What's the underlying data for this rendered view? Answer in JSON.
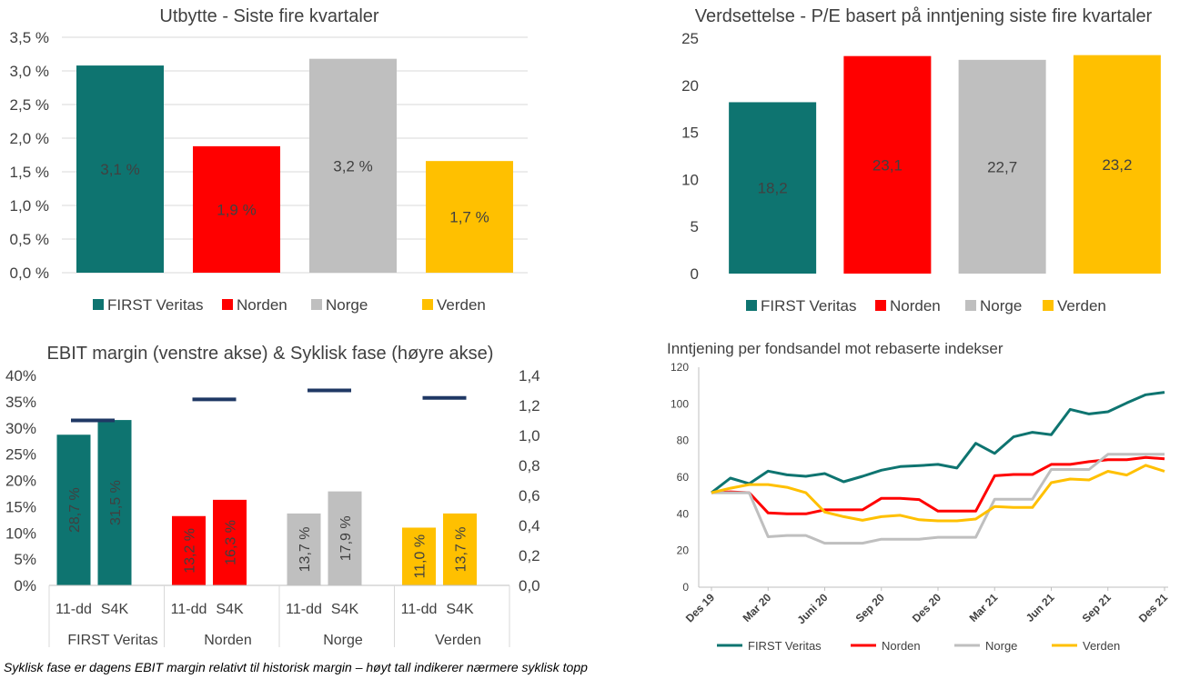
{
  "footnote": "Syklisk fase er dagens EBIT margin relativt til historisk margin – høyt tall indikerer nærmere syklisk topp",
  "chart_data": [
    {
      "id": "dividend",
      "type": "bar",
      "title": "Utbytte - Siste fire kvartaler",
      "categories": [
        "FIRST Veritas",
        "Norden",
        "Norge",
        "Verden"
      ],
      "values": [
        3.08,
        1.88,
        3.18,
        1.66
      ],
      "data_labels": [
        "3,1 %",
        "1,9 %",
        "3,2 %",
        "1,7 %"
      ],
      "colors": [
        "#0e7470",
        "#ff0000",
        "#bfbfbf",
        "#ffc000"
      ],
      "ylim": [
        0,
        3.5
      ],
      "yticks": [
        "0,0 %",
        "0,5 %",
        "1,0 %",
        "1,5 %",
        "2,0 %",
        "2,5 %",
        "3,0 %",
        "3,5 %"
      ],
      "legend": [
        "FIRST Veritas",
        "Norden",
        "Norge",
        "Verden"
      ],
      "legend_position": "bottom",
      "grid": true
    },
    {
      "id": "pe",
      "type": "bar",
      "title": "Verdsettelse - P/E basert på inntjening siste fire kvartaler",
      "categories": [
        "FIRST Veritas",
        "Norden",
        "Norge",
        "Verden"
      ],
      "values": [
        18.2,
        23.1,
        22.7,
        23.2
      ],
      "data_labels": [
        "18,2",
        "23,1",
        "22,7",
        "23,2"
      ],
      "colors": [
        "#0e7470",
        "#ff0000",
        "#bfbfbf",
        "#ffc000"
      ],
      "ylim": [
        0,
        25
      ],
      "yticks": [
        "0",
        "5",
        "10",
        "15",
        "20",
        "25"
      ],
      "legend": [
        "FIRST Veritas",
        "Norden",
        "Norge",
        "Verden"
      ],
      "legend_position": "bottom",
      "grid": false
    },
    {
      "id": "ebit",
      "type": "bar",
      "title": "EBIT margin (venstre akse) & Syklisk fase (høyre akse)",
      "groups": [
        "FIRST Veritas",
        "Norden",
        "Norge",
        "Verden"
      ],
      "subcategories": [
        "11-dd",
        "S4K"
      ],
      "values": [
        [
          28.7,
          31.5
        ],
        [
          13.2,
          16.3
        ],
        [
          13.7,
          17.9
        ],
        [
          11.0,
          13.7
        ]
      ],
      "data_labels": [
        [
          "28,7 %",
          "31,5 %"
        ],
        [
          "13,2 %",
          "16,3 %"
        ],
        [
          "13,7 %",
          "17,9 %"
        ],
        [
          "11,0 %",
          "13,7 %"
        ]
      ],
      "colors": [
        "#0e7470",
        "#ff0000",
        "#bfbfbf",
        "#ffc000"
      ],
      "ylim": [
        0,
        40
      ],
      "yticks": [
        "0%",
        "5%",
        "10%",
        "15%",
        "20%",
        "25%",
        "30%",
        "35%",
        "40%"
      ],
      "cyclical_phase": [
        1.1,
        1.24,
        1.3,
        1.25
      ],
      "cyclical_color": "#1f3864",
      "y2lim": [
        0,
        1.4
      ],
      "y2ticks": [
        "0,0",
        "0,2",
        "0,4",
        "0,6",
        "0,8",
        "1,0",
        "1,2",
        "1,4"
      ],
      "grid": false
    },
    {
      "id": "earnings",
      "type": "line",
      "title": "Inntjening per fondsandel mot rebaserte indekser",
      "x_labels": [
        "Des 19",
        "Mar 20",
        "Juni 20",
        "Sep 20",
        "Des 20",
        "Mar 21",
        "Jun 21",
        "Sep 21",
        "Des 21"
      ],
      "ylim": [
        0,
        120
      ],
      "yticks": [
        "0",
        "20",
        "40",
        "60",
        "80",
        "100",
        "120"
      ],
      "series": [
        {
          "name": "FIRST Veritas",
          "color": "#0e7470",
          "values": [
            51.5,
            59.5,
            56.5,
            63.3,
            61.3,
            60.5,
            62,
            57.5,
            60.5,
            63.8,
            65.8,
            66.3,
            67,
            65,
            78.5,
            73,
            82,
            84.5,
            83.2,
            97,
            94.5,
            95.7,
            100.5,
            105,
            106.3
          ]
        },
        {
          "name": "Norden",
          "color": "#ff0000",
          "values": [
            51.5,
            52,
            51.5,
            40.5,
            40,
            40,
            42.2,
            42.2,
            42.2,
            48.5,
            48.5,
            47.8,
            41.5,
            41.5,
            41.5,
            60.8,
            61.5,
            61.5,
            67,
            67,
            68.5,
            69.5,
            69.5,
            70.8,
            70
          ]
        },
        {
          "name": "Norge",
          "color": "#bfbfbf",
          "values": [
            51.5,
            51.5,
            51.5,
            27.5,
            28.2,
            28.2,
            24,
            24,
            24,
            26.2,
            26.2,
            26.2,
            27.2,
            27.2,
            27.2,
            48,
            48,
            48,
            64.2,
            64.2,
            64.2,
            72.5,
            72.5,
            72.5,
            72.5
          ]
        },
        {
          "name": "Verden",
          "color": "#ffc000",
          "values": [
            51.5,
            54,
            56,
            56,
            54.5,
            51.5,
            41,
            38.5,
            36.5,
            38.5,
            39.2,
            36.8,
            36.2,
            36.2,
            37.2,
            44,
            43.5,
            43.5,
            57,
            59,
            58.5,
            63.2,
            61.2,
            66.5,
            63.2
          ]
        }
      ],
      "legend_position": "bottom",
      "grid": false
    }
  ]
}
